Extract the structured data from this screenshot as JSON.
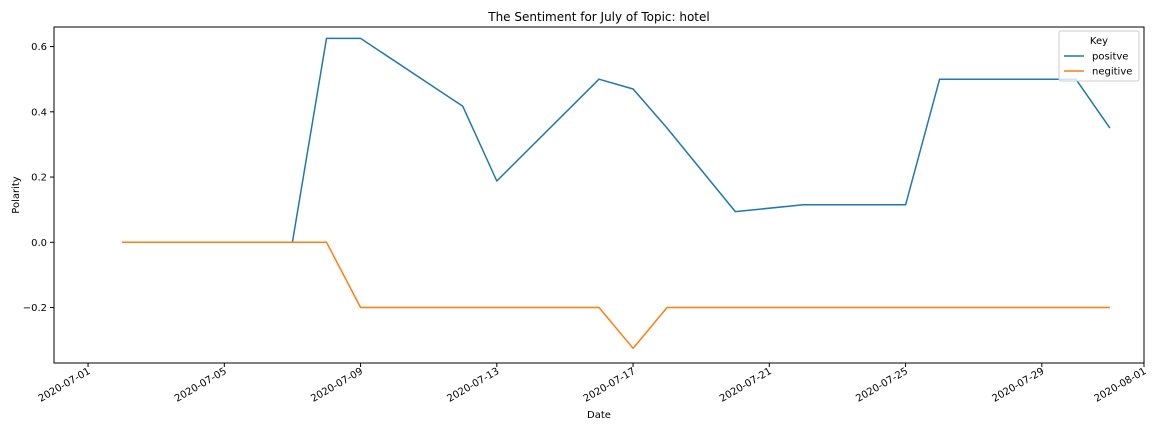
{
  "chart_data": {
    "type": "line",
    "title": "The Sentiment for July of Topic: hotel",
    "xlabel": "Date",
    "ylabel": "Polarity",
    "xlim": [
      "2020-06-30",
      "2020-08-01"
    ],
    "ylim": [
      -0.37,
      0.66
    ],
    "x_ticks": [
      "2020-07-01",
      "2020-07-05",
      "2020-07-09",
      "2020-07-13",
      "2020-07-17",
      "2020-07-21",
      "2020-07-25",
      "2020-07-29",
      "2020-08-01"
    ],
    "y_ticks": [
      0.6,
      0.4,
      0.2,
      0.0,
      -0.2
    ],
    "y_tick_labels": [
      "0.6",
      "0.4",
      "0.2",
      "0.0",
      "−0.2"
    ],
    "grid": false,
    "legend": {
      "title": "Key",
      "placement": "top-right"
    },
    "series": [
      {
        "name": "positve",
        "color": "#1f77b4",
        "points": [
          [
            "2020-07-02",
            0.0
          ],
          [
            "2020-07-07",
            0.0
          ],
          [
            "2020-07-08",
            0.625
          ],
          [
            "2020-07-09",
            0.625
          ],
          [
            "2020-07-12",
            0.417
          ],
          [
            "2020-07-13",
            0.188
          ],
          [
            "2020-07-16",
            0.5
          ],
          [
            "2020-07-17",
            0.47
          ],
          [
            "2020-07-18",
            0.35
          ],
          [
            "2020-07-20",
            0.094
          ],
          [
            "2020-07-22",
            0.115
          ],
          [
            "2020-07-25",
            0.115
          ],
          [
            "2020-07-26",
            0.5
          ],
          [
            "2020-07-30",
            0.5
          ],
          [
            "2020-07-31",
            0.35
          ]
        ]
      },
      {
        "name": "negitive",
        "color": "#ff7f0e",
        "points": [
          [
            "2020-07-02",
            0.0
          ],
          [
            "2020-07-08",
            0.0
          ],
          [
            "2020-07-09",
            -0.2
          ],
          [
            "2020-07-16",
            -0.2
          ],
          [
            "2020-07-17",
            -0.325
          ],
          [
            "2020-07-18",
            -0.2
          ],
          [
            "2020-07-31",
            -0.2
          ]
        ]
      }
    ]
  }
}
